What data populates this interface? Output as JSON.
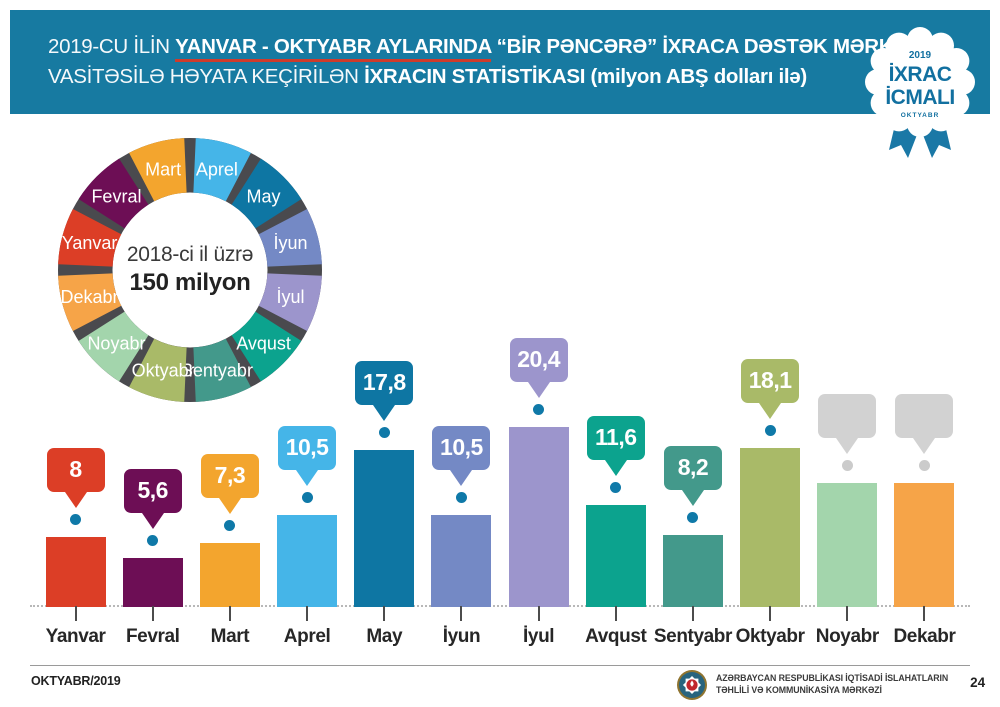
{
  "theme": {
    "band_color": "#177aa1",
    "underline_color": "#cf3b2b",
    "badge_color": "#1a78a6",
    "badge_text_color": "#1270a0",
    "dot_color": "#0f79a8",
    "empty_bubble_color": "#d2d2d2",
    "empty_dot_color": "#cbcbcb",
    "donut_separator_color": "#4a4a4e",
    "month_label_color": "#272727"
  },
  "header": {
    "line1_prefix": "2019-CU İLİN ",
    "line1_underlined": "YANVAR - OKTYABR AYLARINDA",
    "line1_bold": " “BİR PƏNCƏRƏ” İXRACA DƏSTƏK MƏRKƏZİ",
    "line2_prefix": "VASİTƏSİLƏ HƏYATA KEÇİRİLƏN ",
    "line2_bold": "İXRACIN STATİSTİKASI (milyon ABŞ dolları ilə)"
  },
  "badge": {
    "year": "2019",
    "title_line1": "İXRAC",
    "title_line2": "İCMALI",
    "month": "OKTYABR"
  },
  "donut_center": {
    "line1": "2018-ci il üzrə",
    "line2": "150 milyon"
  },
  "chart_data": [
    {
      "type": "bar",
      "title": "2019-cu ilin yanvar - oktyabr aylarında “Bir pəncərə” İxraca Dəstək Mərkəzi vasitəsilə həyata keçirilən ixracın statistikası",
      "unit": "milyon ABŞ dolları ilə",
      "categories": [
        "Yanvar",
        "Fevral",
        "Mart",
        "Aprel",
        "May",
        "İyun",
        "İyul",
        "Avqust",
        "Sentyabr",
        "Oktyabr",
        "Noyabr",
        "Dekabr"
      ],
      "values": [
        8,
        5.6,
        7.3,
        10.5,
        17.8,
        10.5,
        20.4,
        11.6,
        8.2,
        18.1,
        null,
        null
      ],
      "value_labels": [
        "8",
        "5,6",
        "7,3",
        "10,5",
        "17,8",
        "10,5",
        "20,4",
        "11,6",
        "8,2",
        "18,1",
        "",
        ""
      ],
      "colors": [
        "#dc3e26",
        "#6d0e55",
        "#f3a52e",
        "#45b5e8",
        "#0e76a3",
        "#7489c5",
        "#9c95cc",
        "#0ca38e",
        "#43998b",
        "#a9ba68",
        "#a3d5ac",
        "#f6a448"
      ],
      "ylim": [
        0,
        22
      ],
      "grid": false,
      "note": "Noyabr and Dekabr have no values yet (gray empty callouts)"
    },
    {
      "type": "pie",
      "subtype": "donut",
      "title": "2018-ci il üzrə",
      "total_label": "150 milyon",
      "segments_clockwise_from_top": [
        "Aprel",
        "May",
        "İyun",
        "İyul",
        "Avqust",
        "Sentyabr",
        "Oktyabr",
        "Noyabr",
        "Dekabr",
        "Yanvar",
        "Fevral",
        "Mart"
      ],
      "equal_segments": true
    }
  ],
  "footer": {
    "left": "OKTYABR/2019",
    "org_line1": "AZƏRBAYCAN RESPUBLİKASI İQTİSADİ İSLAHATLARIN",
    "org_line2": "TƏHLİLİ VƏ KOMMUNİKASİYA MƏRKƏZİ",
    "page": "24"
  }
}
